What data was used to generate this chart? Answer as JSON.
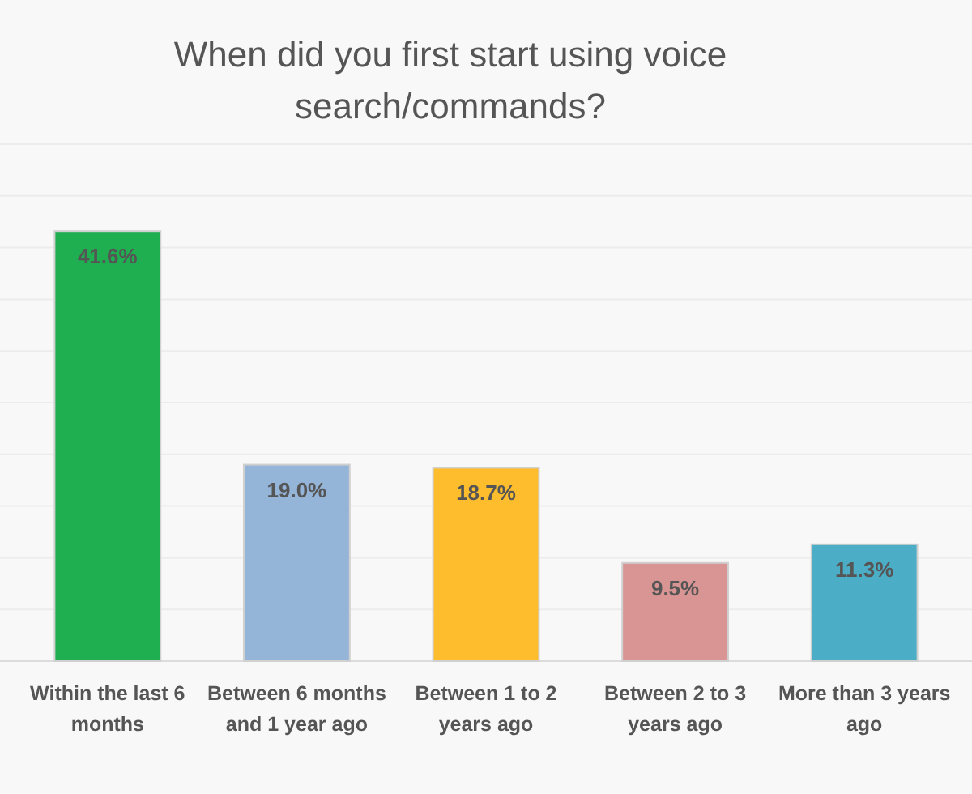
{
  "chart_data": {
    "type": "bar",
    "title": "When did you first start using voice search/commands?",
    "categories": [
      "Within the last 6 months",
      "Between 6 months and 1 year ago",
      "Between 1 to 2 years ago",
      "Between 2 to 3 years ago",
      "More than 3 years ago"
    ],
    "values": [
      41.6,
      19.0,
      18.7,
      9.5,
      11.3
    ],
    "value_labels": [
      "41.6%",
      "19.0%",
      "18.7%",
      "9.5%",
      "11.3%"
    ],
    "colors": [
      "#1fae50",
      "#94b4d8",
      "#fdbd2d",
      "#d99593",
      "#4badc6"
    ],
    "ylim": [
      0,
      50
    ],
    "yticks": [
      {
        "value": 0,
        "label": null
      },
      {
        "value": 5,
        "label": null
      },
      {
        "value": 10,
        "label": null
      },
      {
        "value": 15,
        "label": null
      },
      {
        "value": 20,
        "label": null
      },
      {
        "value": 25,
        "label": null
      },
      {
        "value": 30,
        "label": null
      },
      {
        "value": 35,
        "label": null
      },
      {
        "value": 40,
        "label": null
      },
      {
        "value": 45,
        "label": null
      },
      {
        "value": 50,
        "label": null
      }
    ],
    "grid": "y",
    "tick_labels": "x"
  }
}
